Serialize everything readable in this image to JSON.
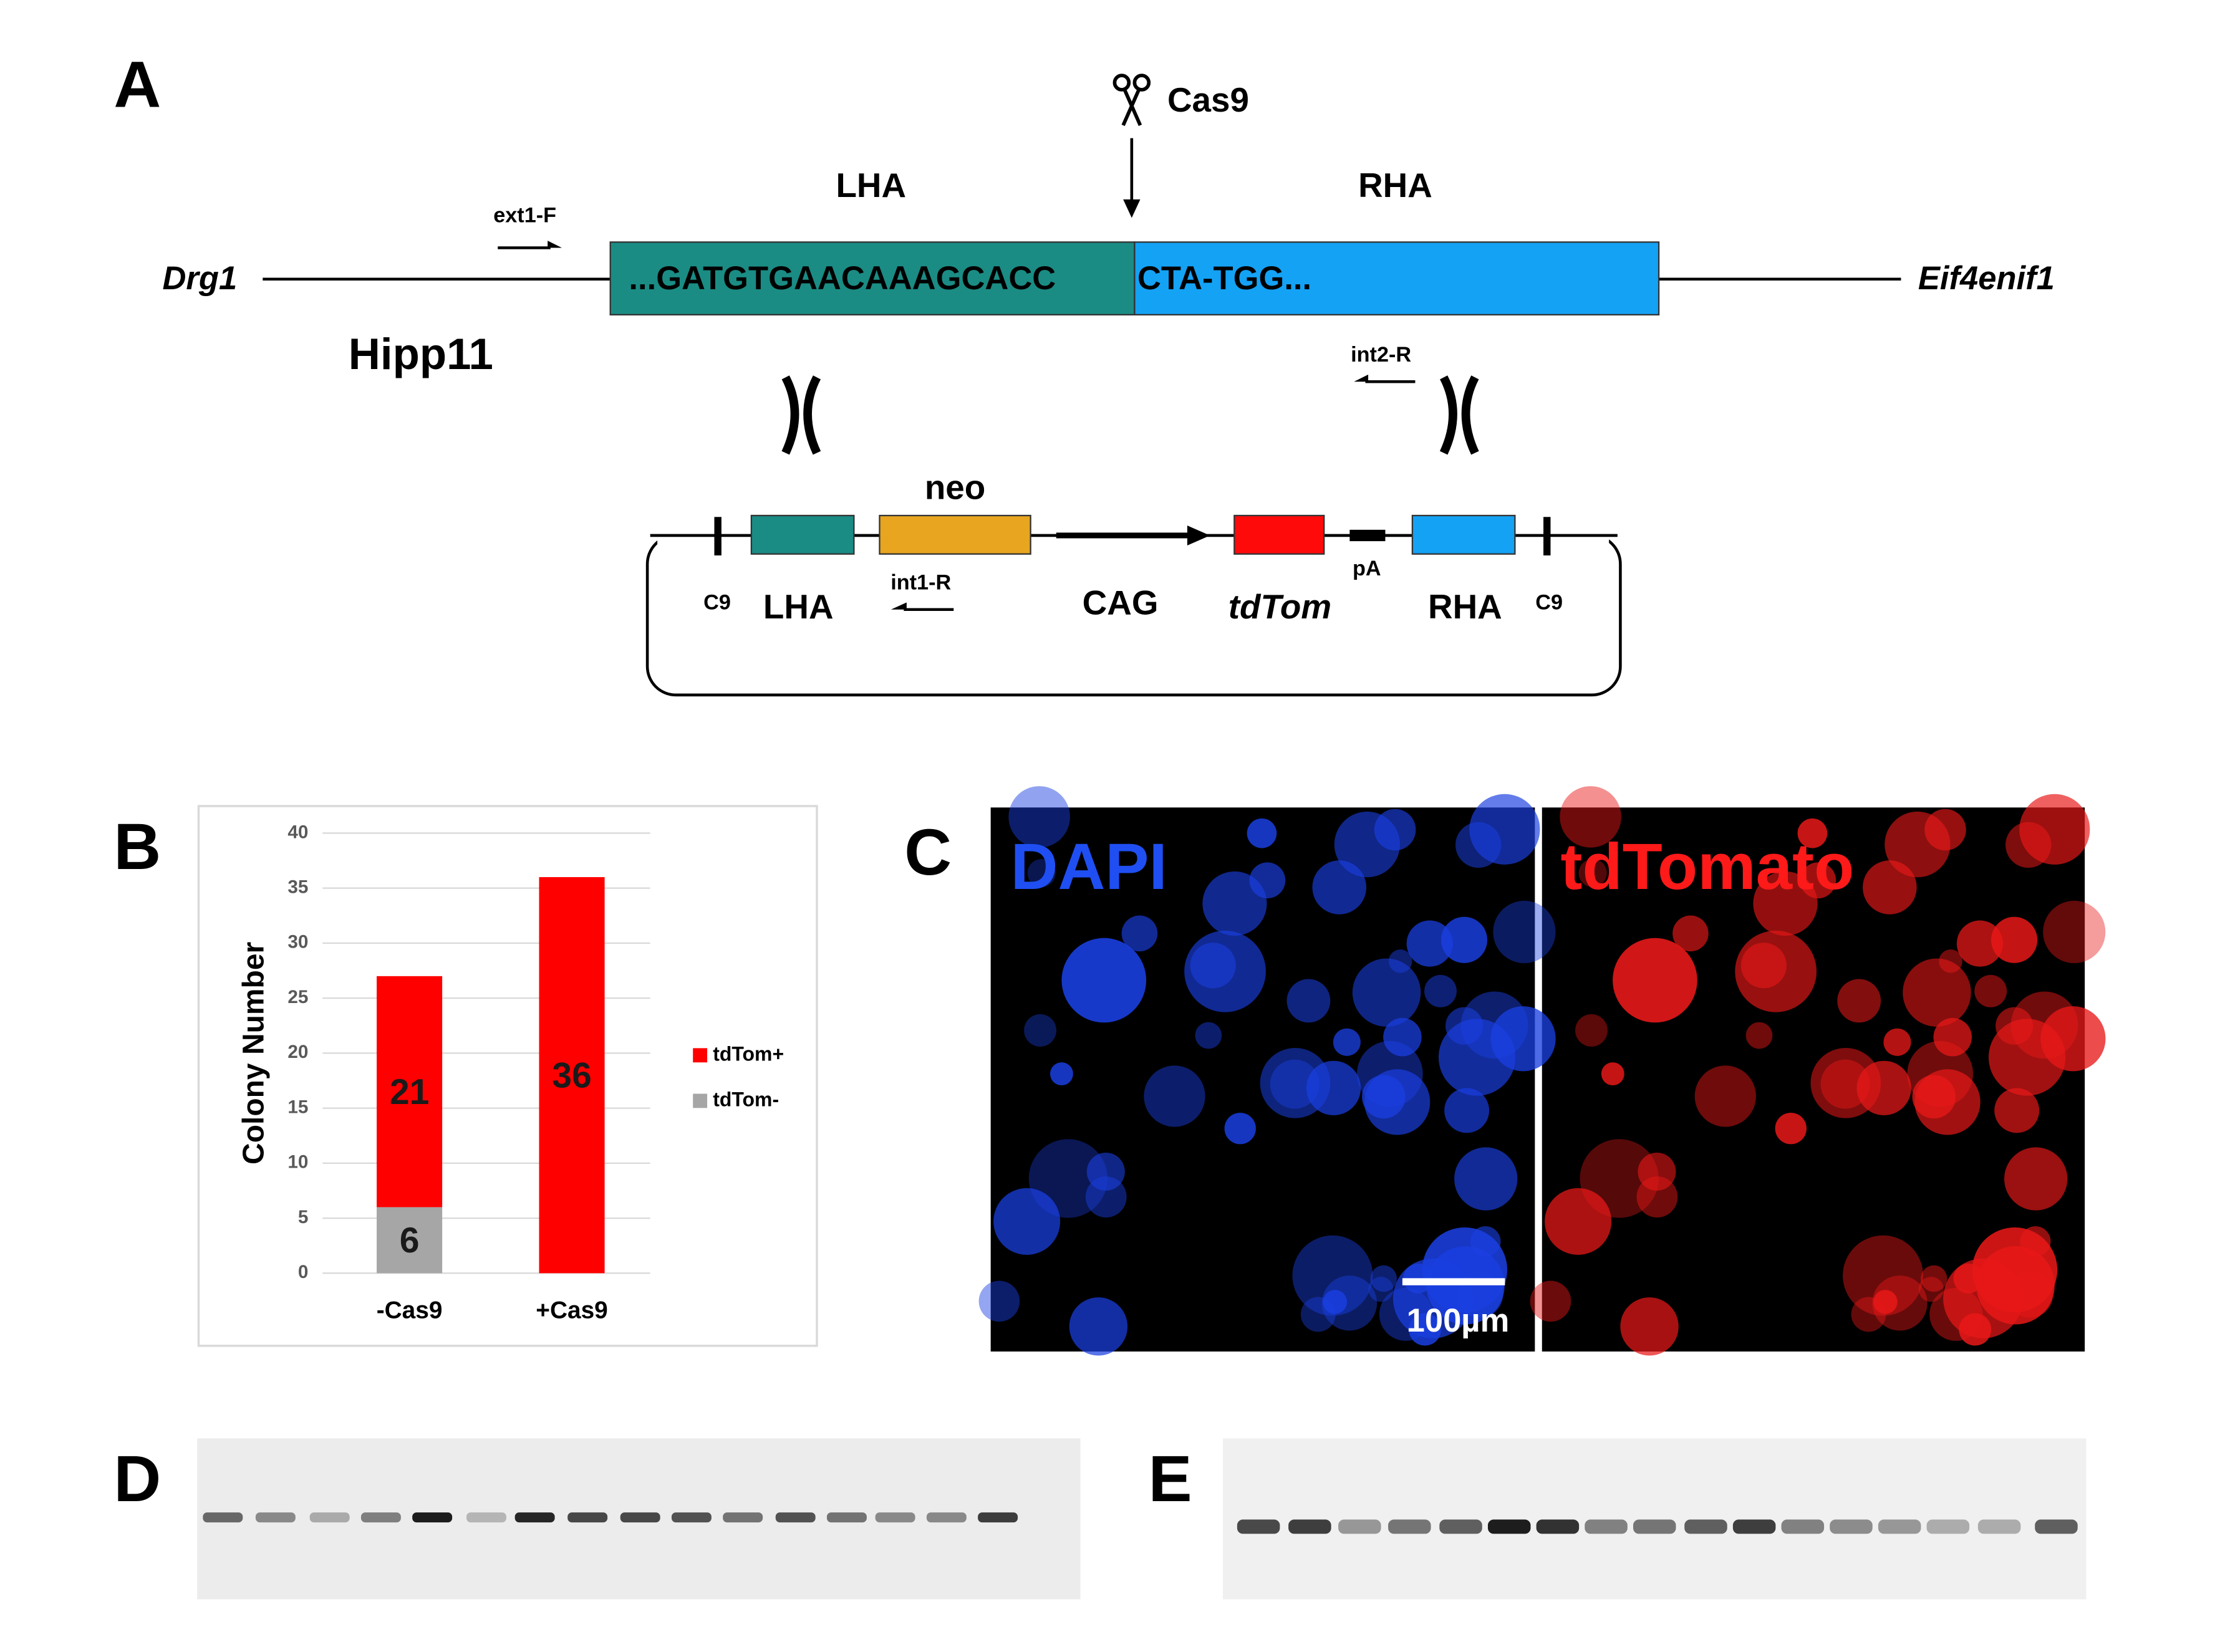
{
  "figure": {
    "panel_labels": [
      "A",
      "B",
      "C",
      "D",
      "E"
    ],
    "diagram": {
      "cas9": "Cas9",
      "lha": "LHA",
      "rha": "RHA",
      "primer_ext1": "ext1-F",
      "left_gene": "Drg1",
      "right_gene": "Eif4enif1",
      "seq_left": "...GATGTGAACAAAGCACC",
      "seq_right": "CTA-TGG...",
      "locus": "Hipp11",
      "primer_int2": "int2-R",
      "plasmid": {
        "neo": "neo",
        "c9_left": "C9",
        "lha": "LHA",
        "primer_int1": "int1-R",
        "cag": "CAG",
        "tdtom": "tdTom",
        "pa": "pA",
        "rha": "RHA",
        "c9_right": "C9"
      }
    },
    "images": {
      "channels": [
        "DAPI",
        "tdTomato"
      ],
      "scale_bar": "100µm"
    }
  },
  "chart_data": {
    "type": "stacked_bar",
    "y_label": "Colony Number",
    "categories": [
      "-Cas9",
      "+Cas9"
    ],
    "series": [
      {
        "name": "tdTom-",
        "color": "#a6a6a6",
        "values": [
          6,
          null
        ]
      },
      {
        "name": "tdTom+",
        "color": "#ff0000",
        "values": [
          21,
          36
        ]
      }
    ],
    "ylim": [
      0,
      40
    ],
    "yticks": [
      0,
      5,
      10,
      15,
      20,
      25,
      30,
      35,
      40
    ],
    "grid": true,
    "legend": "right"
  }
}
